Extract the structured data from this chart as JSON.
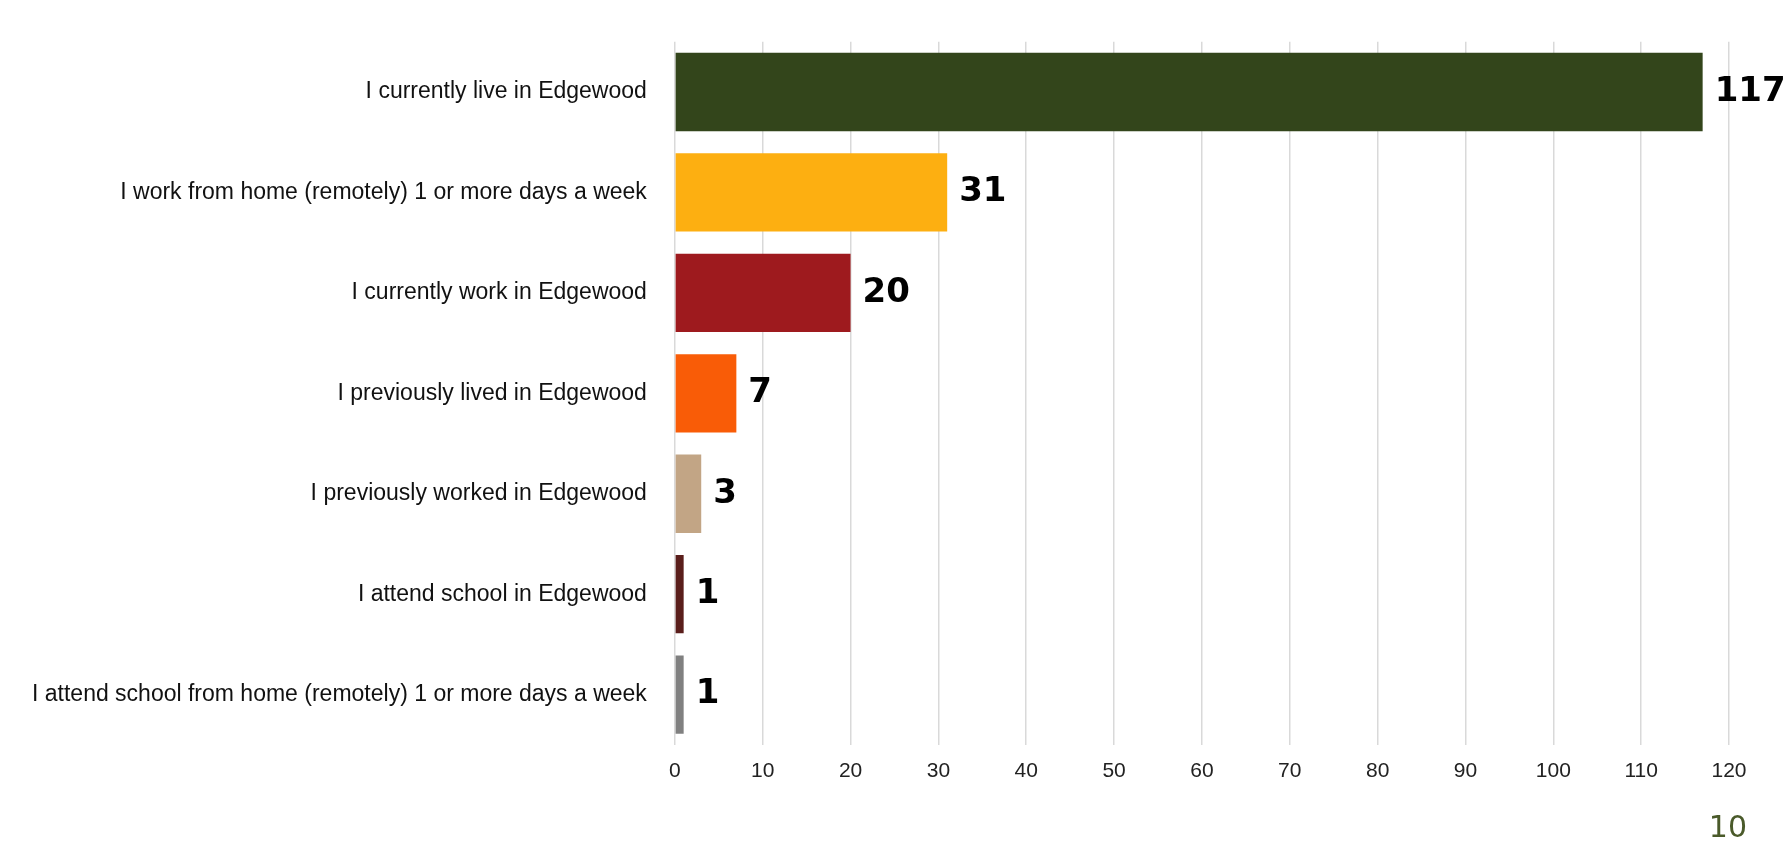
{
  "chart_data": {
    "type": "bar",
    "orientation": "horizontal",
    "categories": [
      "I currently live in Edgewood",
      "I work from home (remotely) 1 or more days a week",
      "I currently work in Edgewood",
      "I previously lived in Edgewood",
      "I previously worked in Edgewood",
      "I attend school in Edgewood",
      "I attend school from home (remotely) 1 or more days a week"
    ],
    "values": [
      117,
      31,
      20,
      7,
      3,
      1,
      1
    ],
    "colors": [
      "#33451b",
      "#fdaf11",
      "#9e1a1e",
      "#f95c07",
      "#c2a585",
      "#5a1e1b",
      "#808080"
    ],
    "xlim": [
      0,
      120
    ],
    "xticks": [
      0,
      10,
      20,
      30,
      40,
      50,
      60,
      70,
      80,
      90,
      100,
      110,
      120
    ],
    "grid": "x",
    "data_labels": true,
    "annotations": [
      "10"
    ]
  }
}
